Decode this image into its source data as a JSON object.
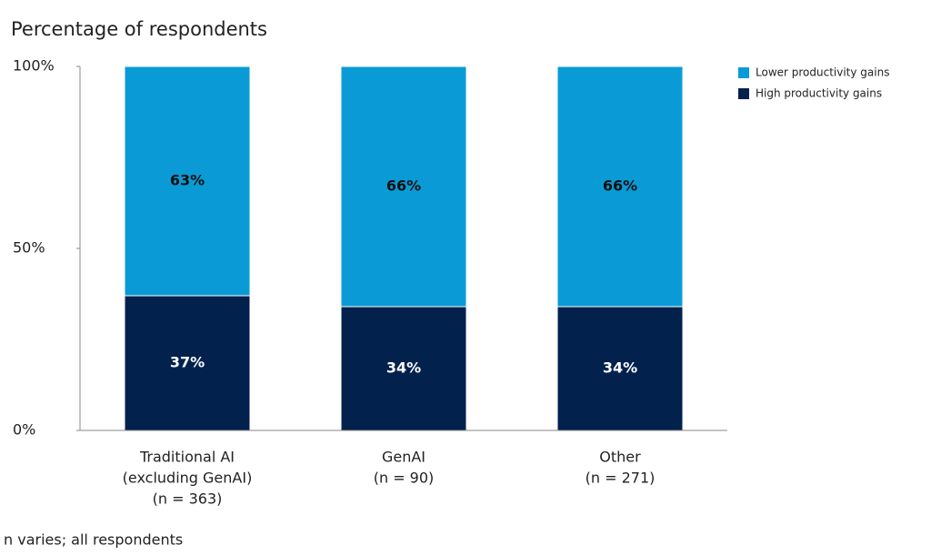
{
  "chart_data": {
    "type": "stacked_bar",
    "subtitle": "Percentage of respondents",
    "note": "n varies; all respondents",
    "categories": [
      [
        "Traditional AI",
        "(excluding GenAI)",
        "(n = 363)"
      ],
      [
        "GenAI",
        "(n = 90)"
      ],
      [
        "Other",
        "(n = 271)"
      ]
    ],
    "series": [
      {
        "name": "High productivity gains",
        "color": "#03214d",
        "values": [
          37,
          34,
          34
        ],
        "value_labels": [
          "37%",
          "34%",
          "34%"
        ]
      },
      {
        "name": "Lower productivity gains",
        "color": "#0a9bd6",
        "values": [
          63,
          66,
          66
        ],
        "value_labels": [
          "63%",
          "66%",
          "66%"
        ]
      }
    ],
    "ylim": [
      0,
      100
    ],
    "yticks": [
      {
        "value": 0,
        "label": "0%"
      },
      {
        "value": 50,
        "label": "50%"
      },
      {
        "value": 100,
        "label": "100%"
      }
    ]
  }
}
